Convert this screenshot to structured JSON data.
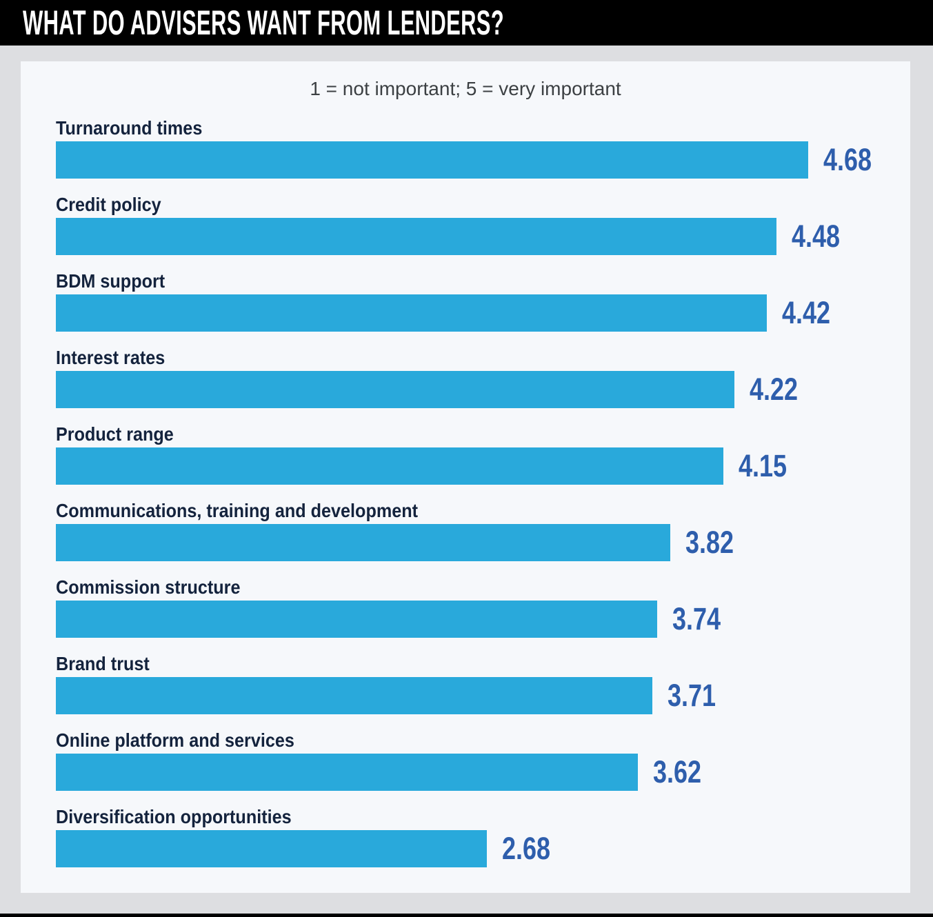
{
  "header": {
    "title": "WHAT DO ADVISERS WANT FROM LENDERS?"
  },
  "chart_data": {
    "type": "bar",
    "orientation": "horizontal",
    "title": "WHAT DO ADVISERS WANT FROM LENDERS?",
    "subtitle": "1 = not important; 5 = very important",
    "categories": [
      "Turnaround times",
      "Credit policy",
      "BDM support",
      "Interest rates",
      "Product range",
      "Communications, training and development",
      "Commission structure",
      "Brand trust",
      "Online platform and services",
      "Diversification opportunities"
    ],
    "values": [
      4.68,
      4.48,
      4.42,
      4.22,
      4.15,
      3.82,
      3.74,
      3.71,
      3.62,
      2.68
    ],
    "value_labels": [
      "4.68",
      "4.48",
      "4.42",
      "4.22",
      "4.15",
      "3.82",
      "3.74",
      "3.71",
      "3.62",
      "2.68"
    ],
    "xlim": [
      0,
      5
    ],
    "grid": false,
    "legend": "none",
    "value_label_position": "end-of-bar",
    "colors": {
      "bar": "#29A9DB",
      "value_text": "#2E5EAC",
      "category_text": "#14233D",
      "subtitle_text": "#3C4043",
      "panel_bg": "#F6F8FB",
      "outer_bg": "#DDDEE1",
      "header_bg": "#000000",
      "header_text": "#FFFFFF"
    }
  }
}
